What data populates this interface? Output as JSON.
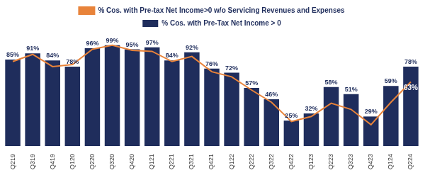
{
  "chart_data": {
    "type": "bar",
    "categories": [
      "Q219",
      "Q319",
      "Q419",
      "Q120",
      "Q220",
      "Q320",
      "Q420",
      "Q121",
      "Q221",
      "Q321",
      "Q421",
      "Q122",
      "Q222",
      "Q322",
      "Q422",
      "Q123",
      "Q223",
      "Q323",
      "Q423",
      "Q124",
      "Q224"
    ],
    "series": [
      {
        "name": "% Cos. with Pre-Tax Net Income > 0",
        "type": "bar",
        "color": "#1f2d5c",
        "values": [
          85,
          91,
          84,
          78,
          96,
          99,
          95,
          97,
          84,
          92,
          76,
          72,
          57,
          46,
          25,
          32,
          58,
          51,
          29,
          59,
          78
        ],
        "value_labels": [
          "85%",
          "91%",
          "84%",
          "78%",
          "96%",
          "99%",
          "95%",
          "97%",
          "84%",
          "92%",
          "76%",
          "72%",
          "57%",
          "46%",
          "25%",
          "32%",
          "58%",
          "51%",
          "29%",
          "59%",
          "78%"
        ]
      },
      {
        "name": "% Cos. with Pre-tax Net Income>0 w/o Servicing Revenues and Expenses",
        "type": "line",
        "color": "#e8833a",
        "values": [
          83,
          90,
          78,
          80,
          95,
          99,
          94,
          93,
          83,
          88,
          73,
          68,
          55,
          43,
          24,
          29,
          42,
          36,
          21,
          43,
          63
        ],
        "value_labels": [
          null,
          null,
          null,
          null,
          null,
          null,
          null,
          null,
          null,
          null,
          null,
          null,
          null,
          null,
          null,
          null,
          null,
          null,
          null,
          null,
          "63%"
        ]
      }
    ],
    "ylim": [
      0,
      110
    ],
    "data_labels": true,
    "legend": "top",
    "grid": false,
    "tick_labels": "x"
  }
}
